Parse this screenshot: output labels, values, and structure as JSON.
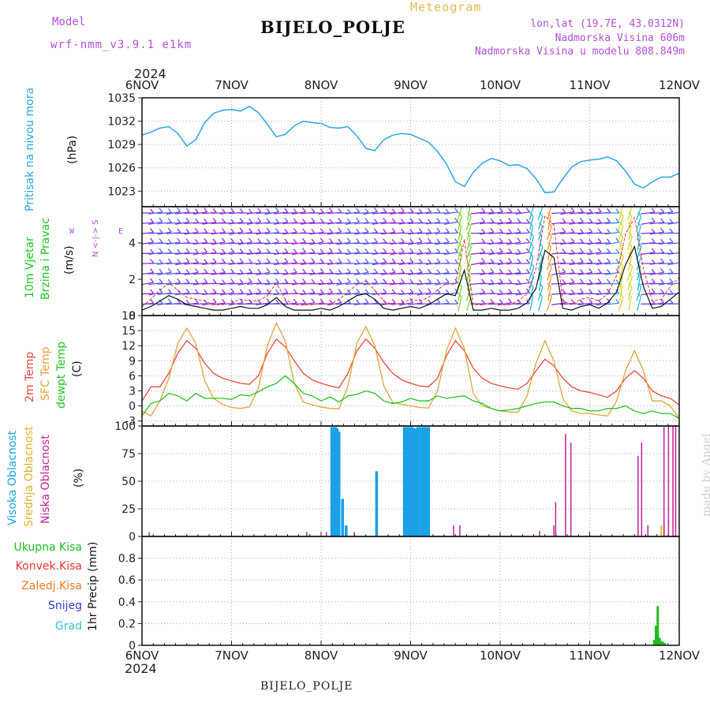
{
  "header": {
    "model_label": "Model",
    "model_name": "wrf-nmm_v3.9.1 e1km",
    "app_title": "Meteogram",
    "station": "BIJELO_POLJE",
    "lonlat": "lon,lat (19.7E, 43.0312N)",
    "elevation": "Nadmorska Visina 606m",
    "model_elevation": "Nadmorska Visina u modelu 808.849m"
  },
  "time_axis": {
    "year": "2024",
    "day_labels": [
      "6NOV",
      "7NOV",
      "8NOV",
      "9NOV",
      "10NOV",
      "11NOV",
      "12NOV"
    ],
    "start_day": 6,
    "end_day": 12
  },
  "left_labels": {
    "pressure": "Pritisak na nivou mora",
    "pressure_unit": "(hPa)",
    "wind_1": "10m Vjetar",
    "wind_2": "Brzina i Pravac",
    "wind_unit": "(m/s)",
    "compass_ns": "N <-|-> S",
    "compass_e": "E",
    "compass_w": "W",
    "temp_2m": "2m Temp",
    "temp_sfc": "SFC Temp",
    "temp_dew": "dewpt Temp",
    "temp_unit": "(C)",
    "cloud_high": "Visoka Oblacnost",
    "cloud_mid": "Srednja Oblacnost",
    "cloud_low": "Niska Oblacnost",
    "cloud_unit": "(%)",
    "precip_unit": "1hr Precip (mm)"
  },
  "precip_legend": [
    {
      "label": "Ukupna Kisa",
      "color": "#22bb22"
    },
    {
      "label": "Konvek.Kisa",
      "color": "#ee3333"
    },
    {
      "label": "Zaledj.Kisa",
      "color": "#ee7a22"
    },
    {
      "label": "Snijeg",
      "color": "#3a3ad6"
    },
    {
      "label": "Grad",
      "color": "#2ec4c4"
    }
  ],
  "footer": {
    "station": "BIJELO_POLJE",
    "watermark": "made by Angel"
  },
  "colors": {
    "pressure": "#2aa6e6",
    "temp_2m": "#e84a3a",
    "temp_sfc": "#e0a43a",
    "temp_dew": "#22c422",
    "cloud_high": "#1aa0e6",
    "cloud_mid": "#e0b030",
    "cloud_low": "#c0209a",
    "precip_total": "#22bb22",
    "wind_speed": "#111111",
    "gust": "#ee3333",
    "grid": "#aaaaaa"
  },
  "chart_data": [
    {
      "type": "line",
      "title": "Pritisak na nivou mora",
      "ylabel": "(hPa)",
      "ylim": [
        1021,
        1035
      ],
      "yticks": [
        1023,
        1026,
        1029,
        1032,
        1035
      ],
      "grid": true,
      "x": [
        6.0,
        6.1,
        6.2,
        6.3,
        6.4,
        6.5,
        6.6,
        6.7,
        6.8,
        6.9,
        7.0,
        7.1,
        7.2,
        7.3,
        7.4,
        7.5,
        7.6,
        7.7,
        7.8,
        7.9,
        8.0,
        8.1,
        8.2,
        8.3,
        8.4,
        8.5,
        8.6,
        8.7,
        8.8,
        8.9,
        9.0,
        9.1,
        9.2,
        9.3,
        9.4,
        9.5,
        9.6,
        9.7,
        9.8,
        9.9,
        10.0,
        10.1,
        10.2,
        10.3,
        10.4,
        10.5,
        10.6,
        10.7,
        10.8,
        10.9,
        11.0,
        11.1,
        11.2,
        11.3,
        11.4,
        11.5,
        11.6,
        11.7,
        11.8,
        11.9,
        12.0
      ],
      "series": [
        {
          "values": [
            1030.2,
            1030.6,
            1031.1,
            1031.3,
            1030.4,
            1028.8,
            1029.6,
            1031.8,
            1033.0,
            1033.4,
            1033.5,
            1033.3,
            1033.9,
            1033.1,
            1031.6,
            1030.0,
            1030.3,
            1031.4,
            1032.0,
            1031.8,
            1031.7,
            1031.2,
            1031.1,
            1031.3,
            1030.1,
            1028.5,
            1028.2,
            1029.6,
            1030.2,
            1030.4,
            1030.3,
            1029.8,
            1029.3,
            1028.1,
            1026.5,
            1024.2,
            1023.6,
            1025.4,
            1026.6,
            1027.2,
            1026.9,
            1026.3,
            1026.4,
            1025.9,
            1024.6,
            1022.8,
            1022.9,
            1024.6,
            1026.1,
            1026.8,
            1027.0,
            1027.1,
            1027.4,
            1026.9,
            1025.6,
            1023.9,
            1023.4,
            1024.2,
            1024.8,
            1024.8,
            1025.3
          ]
        }
      ]
    },
    {
      "type": "line",
      "title": "10m Vjetar Brzina i Pravac",
      "ylabel": "(m/s)",
      "ylim": [
        0,
        6
      ],
      "yticks": [
        0,
        2,
        4
      ],
      "grid": false,
      "x": [
        6.0,
        6.1,
        6.2,
        6.3,
        6.4,
        6.5,
        6.6,
        6.7,
        6.8,
        6.9,
        7.0,
        7.1,
        7.2,
        7.3,
        7.4,
        7.5,
        7.6,
        7.7,
        7.8,
        7.9,
        8.0,
        8.1,
        8.2,
        8.3,
        8.4,
        8.5,
        8.6,
        8.7,
        8.8,
        8.9,
        9.0,
        9.1,
        9.2,
        9.3,
        9.4,
        9.5,
        9.6,
        9.7,
        9.8,
        9.9,
        10.0,
        10.1,
        10.2,
        10.3,
        10.4,
        10.5,
        10.6,
        10.7,
        10.8,
        10.9,
        11.0,
        11.1,
        11.2,
        11.3,
        11.4,
        11.5,
        11.6,
        11.7,
        11.8,
        11.9,
        12.0
      ],
      "series": [
        {
          "values": [
            0.3,
            0.5,
            0.8,
            1.1,
            0.9,
            0.6,
            0.5,
            0.4,
            0.3,
            0.3,
            0.4,
            0.5,
            0.4,
            0.4,
            0.6,
            1.0,
            0.5,
            0.3,
            0.3,
            0.3,
            0.4,
            0.3,
            0.5,
            0.8,
            1.1,
            1.2,
            0.9,
            0.4,
            0.3,
            0.4,
            0.5,
            0.4,
            0.6,
            0.9,
            1.2,
            1.1,
            2.5,
            0.3,
            0.3,
            0.4,
            0.3,
            0.3,
            0.4,
            0.7,
            1.5,
            3.6,
            3.2,
            0.4,
            0.3,
            0.5,
            0.6,
            0.4,
            0.7,
            1.3,
            2.8,
            3.8,
            1.6,
            0.4,
            0.5,
            0.9,
            1.3
          ]
        },
        {
          "values": [
            0.5,
            0.9,
            1.4,
            1.8,
            1.4,
            1.0,
            0.9,
            0.8,
            0.6,
            0.6,
            0.7,
            0.9,
            0.8,
            0.8,
            1.1,
            1.8,
            0.9,
            0.6,
            0.6,
            0.6,
            0.7,
            0.6,
            0.9,
            1.3,
            1.7,
            1.9,
            1.4,
            0.8,
            0.6,
            0.7,
            0.9,
            0.8,
            1.0,
            1.4,
            1.8,
            1.7,
            4.2,
            0.6,
            0.6,
            0.7,
            0.6,
            0.6,
            0.8,
            1.2,
            2.6,
            5.5,
            5.0,
            0.8,
            0.6,
            0.9,
            1.0,
            0.8,
            1.2,
            2.2,
            4.5,
            5.4,
            2.6,
            0.8,
            0.9,
            1.6,
            2.1
          ]
        }
      ]
    },
    {
      "type": "line",
      "title": "2m Temp / SFC Temp / dewpt Temp",
      "ylabel": "(C)",
      "ylim": [
        -4,
        18
      ],
      "yticks": [
        -3,
        0,
        3,
        6,
        9,
        12,
        15,
        18
      ],
      "grid": true,
      "x": [
        6.0,
        6.1,
        6.2,
        6.3,
        6.4,
        6.5,
        6.6,
        6.7,
        6.8,
        6.9,
        7.0,
        7.1,
        7.2,
        7.3,
        7.4,
        7.5,
        7.6,
        7.7,
        7.8,
        7.9,
        8.0,
        8.1,
        8.2,
        8.3,
        8.4,
        8.5,
        8.6,
        8.7,
        8.8,
        8.9,
        9.0,
        9.1,
        9.2,
        9.3,
        9.4,
        9.5,
        9.6,
        9.7,
        9.8,
        9.9,
        10.0,
        10.1,
        10.2,
        10.3,
        10.4,
        10.5,
        10.6,
        10.7,
        10.8,
        10.9,
        11.0,
        11.1,
        11.2,
        11.3,
        11.4,
        11.5,
        11.6,
        11.7,
        11.8,
        11.9,
        12.0
      ],
      "series": [
        {
          "name": "2m Temp",
          "values": [
            1.0,
            3.8,
            3.8,
            6.5,
            10.5,
            13.0,
            11.5,
            8.5,
            6.5,
            5.5,
            5.0,
            4.5,
            4.3,
            6.0,
            10.5,
            13.3,
            11.8,
            9.0,
            6.5,
            5.2,
            4.5,
            4.0,
            3.6,
            6.5,
            11.0,
            13.3,
            11.5,
            8.7,
            6.5,
            5.2,
            4.5,
            4.0,
            3.8,
            5.5,
            10.0,
            13.0,
            11.0,
            7.5,
            5.5,
            4.5,
            4.0,
            3.6,
            3.3,
            4.5,
            7.0,
            9.3,
            8.0,
            5.5,
            3.8,
            3.0,
            2.7,
            2.2,
            1.7,
            3.0,
            5.5,
            7.0,
            5.5,
            3.0,
            2.0,
            1.5,
            0.2
          ]
        },
        {
          "name": "SFC Temp",
          "values": [
            -1.0,
            -2.0,
            1.0,
            5.5,
            12.5,
            15.5,
            12.5,
            5.0,
            1.5,
            0.3,
            -0.3,
            -0.5,
            -0.2,
            3.5,
            12.0,
            16.5,
            13.0,
            4.5,
            0.8,
            0.2,
            -0.2,
            -0.5,
            -0.6,
            4.0,
            12.5,
            15.8,
            12.0,
            4.0,
            0.7,
            0.3,
            0.0,
            -0.3,
            -0.4,
            3.0,
            11.0,
            15.5,
            11.5,
            2.5,
            0.0,
            -0.5,
            -1.0,
            -1.2,
            -1.3,
            2.0,
            8.5,
            13.0,
            9.0,
            1.5,
            -1.0,
            -1.5,
            -1.5,
            -1.8,
            -2.0,
            1.0,
            7.0,
            11.0,
            7.0,
            1.0,
            1.0,
            0.0,
            -2.5
          ]
        },
        {
          "name": "dewpt Temp",
          "values": [
            -2.0,
            0.5,
            1.0,
            2.5,
            2.0,
            1.0,
            2.5,
            1.5,
            1.5,
            1.5,
            1.3,
            2.2,
            2.0,
            2.8,
            3.8,
            4.5,
            6.0,
            4.5,
            2.5,
            2.0,
            1.0,
            1.8,
            0.8,
            2.0,
            2.3,
            3.0,
            2.5,
            1.0,
            0.5,
            0.8,
            1.5,
            1.0,
            1.0,
            2.0,
            1.5,
            1.8,
            2.0,
            1.0,
            0.5,
            -0.5,
            -1.0,
            -0.8,
            -0.5,
            0.0,
            0.5,
            0.8,
            0.8,
            0.0,
            -0.5,
            -0.5,
            -1.0,
            -1.0,
            -0.5,
            -0.5,
            0.0,
            -1.0,
            -1.5,
            -1.0,
            -1.5,
            -1.5,
            -2.5
          ]
        }
      ]
    },
    {
      "type": "bar",
      "title": "Visoka / Srednja / Niska Oblacnost",
      "ylabel": "(%)",
      "ylim": [
        0,
        100
      ],
      "yticks": [
        0,
        25,
        50,
        75,
        100
      ],
      "grid": true,
      "series": [
        {
          "name": "Visoka Oblacnost",
          "x": [
            8.12,
            8.14,
            8.16,
            8.18,
            8.2,
            8.24,
            8.28,
            8.62,
            8.93,
            8.96,
            8.99,
            9.02,
            9.05,
            9.08,
            9.11,
            9.14,
            9.17,
            9.2
          ],
          "values": [
            99,
            99,
            99,
            98,
            95,
            34,
            10,
            59,
            99,
            99,
            99,
            99,
            98,
            99,
            99,
            99,
            99,
            99
          ]
        },
        {
          "name": "Srednja Oblacnost",
          "x": [
            11.8,
            11.83
          ],
          "values": [
            10,
            10
          ]
        },
        {
          "name": "Niska Oblacnost",
          "x": [
            6.08,
            7.84,
            8.06,
            8.37,
            9.48,
            9.55,
            10.44,
            10.6,
            10.62,
            10.73,
            10.79,
            11.54,
            11.58,
            11.65,
            11.83,
            11.88,
            11.93,
            11.96
          ],
          "values": [
            4,
            4,
            4,
            4,
            10,
            10,
            5,
            10,
            31,
            93,
            85,
            73,
            85,
            10,
            99,
            100,
            100,
            100
          ]
        }
      ]
    },
    {
      "type": "bar",
      "title": "1hr Precip",
      "ylabel": "1hr Precip (mm)",
      "ylim": [
        0,
        1.0
      ],
      "yticks": [
        0,
        0.2,
        0.4,
        0.6,
        0.8
      ],
      "grid": true,
      "series": [
        {
          "name": "Ukupna Kisa",
          "x": [
            11.72,
            11.74,
            11.76,
            11.78,
            11.8,
            11.82,
            11.84
          ],
          "values": [
            0.05,
            0.18,
            0.36,
            0.07,
            0.04,
            0.03,
            0.02
          ]
        }
      ]
    }
  ]
}
